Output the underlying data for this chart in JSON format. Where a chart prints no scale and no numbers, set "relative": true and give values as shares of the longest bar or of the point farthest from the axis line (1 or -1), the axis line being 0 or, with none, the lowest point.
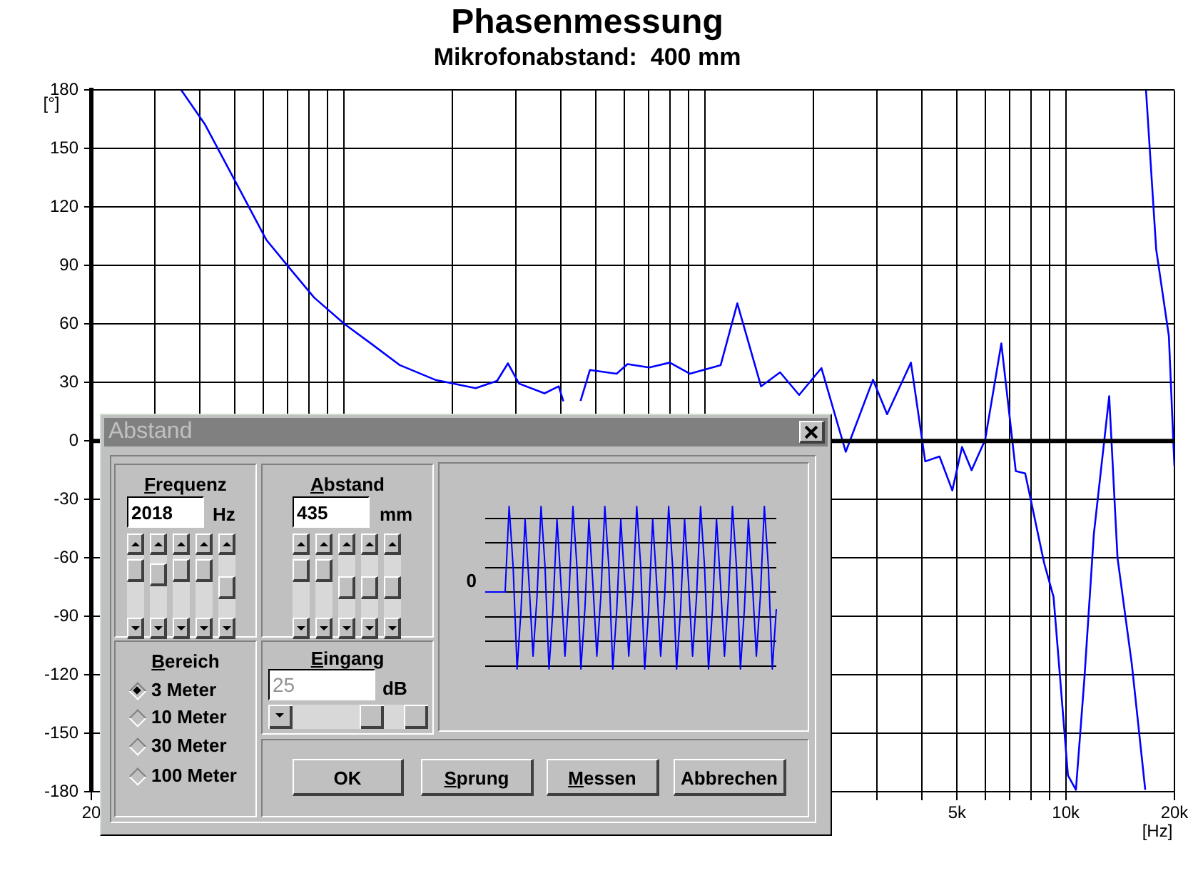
{
  "chart_data": [
    {
      "type": "line",
      "title": "Phasenmessung",
      "subtitle": "Mikrofonabstand:  400 mm",
      "xlabel": "[Hz]",
      "ylabel": "[°]",
      "x": [
        35.5,
        41.2,
        51,
        61,
        71,
        82.8,
        100.5,
        119,
        143,
        179,
        232,
        266,
        285,
        306,
        360,
        394,
        406,
        430,
        453,
        481,
        570,
        611,
        702,
        800,
        909,
        1107,
        1231,
        1432,
        1617,
        1826,
        2105,
        2458,
        2925,
        3200,
        3725,
        4080,
        4470,
        4850,
        5160,
        5485,
        5980,
        6630,
        7270,
        7720,
        8710,
        9250,
        10140,
        10670,
        11260,
        11960,
        13190,
        13910,
        15240,
        16600,
        16640,
        16680,
        17800,
        19300,
        19860,
        20000
      ],
      "series": [
        {
          "color": "#0000ff",
          "values": [
            180,
            162.7,
            130.5,
            103.3,
            88.4,
            73.6,
            60,
            50,
            38.9,
            31.4,
            27.1,
            30.8,
            39.8,
            29.4,
            24.4,
            28,
            20.3,
            null,
            20.5,
            36.4,
            34.5,
            39.4,
            37.7,
            40.2,
            34.5,
            38.9,
            70.6,
            28,
            35.2,
            23.6,
            37.4,
            -5.6,
            31.4,
            13.7,
            40.2,
            -10.5,
            -8,
            -25.4,
            -3.1,
            -15,
            0.6,
            50,
            -15.5,
            -16.7,
            -62.6,
            -80,
            -171.6,
            -179,
            -122,
            -47.8,
            22.9,
            -60,
            -114.6,
            -179,
            null,
            180,
            98.3,
            53.8,
            -0.6,
            -13
          ]
        }
      ],
      "xlim": [
        20,
        20000
      ],
      "xticks": [
        {
          "value": 20,
          "label": "20"
        },
        {
          "value": 30,
          "label": null
        },
        {
          "value": 40,
          "label": null
        },
        {
          "value": 50,
          "label": null
        },
        {
          "value": 60,
          "label": null
        },
        {
          "value": 70,
          "label": null
        },
        {
          "value": 80,
          "label": null
        },
        {
          "value": 90,
          "label": null
        },
        {
          "value": 100,
          "label": null
        },
        {
          "value": 200,
          "label": null
        },
        {
          "value": 300,
          "label": null
        },
        {
          "value": 400,
          "label": null
        },
        {
          "value": 500,
          "label": null
        },
        {
          "value": 600,
          "label": null
        },
        {
          "value": 700,
          "label": null
        },
        {
          "value": 800,
          "label": null
        },
        {
          "value": 900,
          "label": null
        },
        {
          "value": 1000,
          "label": null
        },
        {
          "value": 2000,
          "label": null
        },
        {
          "value": 3000,
          "label": null
        },
        {
          "value": 4000,
          "label": null
        },
        {
          "value": 5000,
          "label": "5k"
        },
        {
          "value": 6000,
          "label": null
        },
        {
          "value": 7000,
          "label": null
        },
        {
          "value": 8000,
          "label": null
        },
        {
          "value": 9000,
          "label": null
        },
        {
          "value": 10000,
          "label": "10k"
        },
        {
          "value": 20000,
          "label": "20k"
        }
      ],
      "ylim": [
        -180,
        180
      ],
      "yticks": [
        -180,
        -150,
        -120,
        -90,
        -60,
        -30,
        0,
        30,
        60,
        90,
        120,
        150,
        180
      ],
      "ref_lines": [
        {
          "axis": "y",
          "value": 0,
          "color": "#000000"
        }
      ],
      "log": "x",
      "grid": true,
      "legend": false,
      "marker": "none",
      "line_style": "solid",
      "annotations": [
        "Abstand",
        "Frequenz",
        "2018",
        "Hz",
        "Abstand",
        "435",
        "mm",
        "Bereich",
        "3 Meter",
        "10 Meter",
        "30 Meter",
        "100 Meter",
        "Eingang",
        "25",
        "dB",
        "OK",
        "Sprung",
        "Messen",
        "Abbrechen"
      ]
    },
    {
      "type": "line",
      "relative": true,
      "grid": "y",
      "legend": false,
      "marker": "none",
      "line_style": "solid",
      "annotations": [
        "0"
      ],
      "categories": [
        null,
        null,
        null,
        null,
        null,
        null,
        null,
        null,
        null,
        null,
        null,
        null,
        null,
        null,
        null,
        null,
        null,
        null,
        null,
        null,
        null,
        null,
        null,
        null,
        null,
        null,
        null,
        null,
        null,
        null,
        null,
        null,
        null,
        null,
        null,
        null,
        null,
        null,
        null,
        null,
        null,
        null,
        null,
        null,
        null,
        null,
        null,
        null,
        null,
        null,
        null,
        null,
        null,
        null,
        null,
        null,
        null,
        null,
        null,
        null,
        null,
        null,
        null,
        null,
        null,
        null,
        null,
        null,
        null,
        null,
        null,
        null,
        null,
        null
      ],
      "series": [
        {
          "color": "#0000ff",
          "values": [
            0,
            0,
            0,
            0,
            0,
            0,
            1,
            0.3,
            -0.9,
            -0.2,
            0.85,
            0.1,
            -0.75,
            -0.05,
            1,
            0.3,
            -0.9,
            -0.2,
            0.85,
            0.1,
            -0.75,
            -0.05,
            1,
            0.3,
            -0.9,
            -0.2,
            0.85,
            0.1,
            -0.75,
            -0.05,
            1,
            0.3,
            -0.9,
            -0.2,
            0.85,
            0.1,
            -0.75,
            -0.05,
            1,
            0.3,
            -0.9,
            -0.2,
            0.85,
            0.1,
            -0.75,
            -0.05,
            1,
            0.3,
            -0.9,
            -0.2,
            0.85,
            0.1,
            -0.75,
            -0.05,
            1,
            0.3,
            -0.9,
            -0.2,
            0.85,
            0.1,
            -0.75,
            -0.05,
            1,
            0.3,
            -0.9,
            -0.2,
            0.85,
            0.1,
            -0.75,
            -0.05,
            1,
            0.3,
            -0.9,
            -0.2
          ]
        }
      ]
    }
  ]
}
